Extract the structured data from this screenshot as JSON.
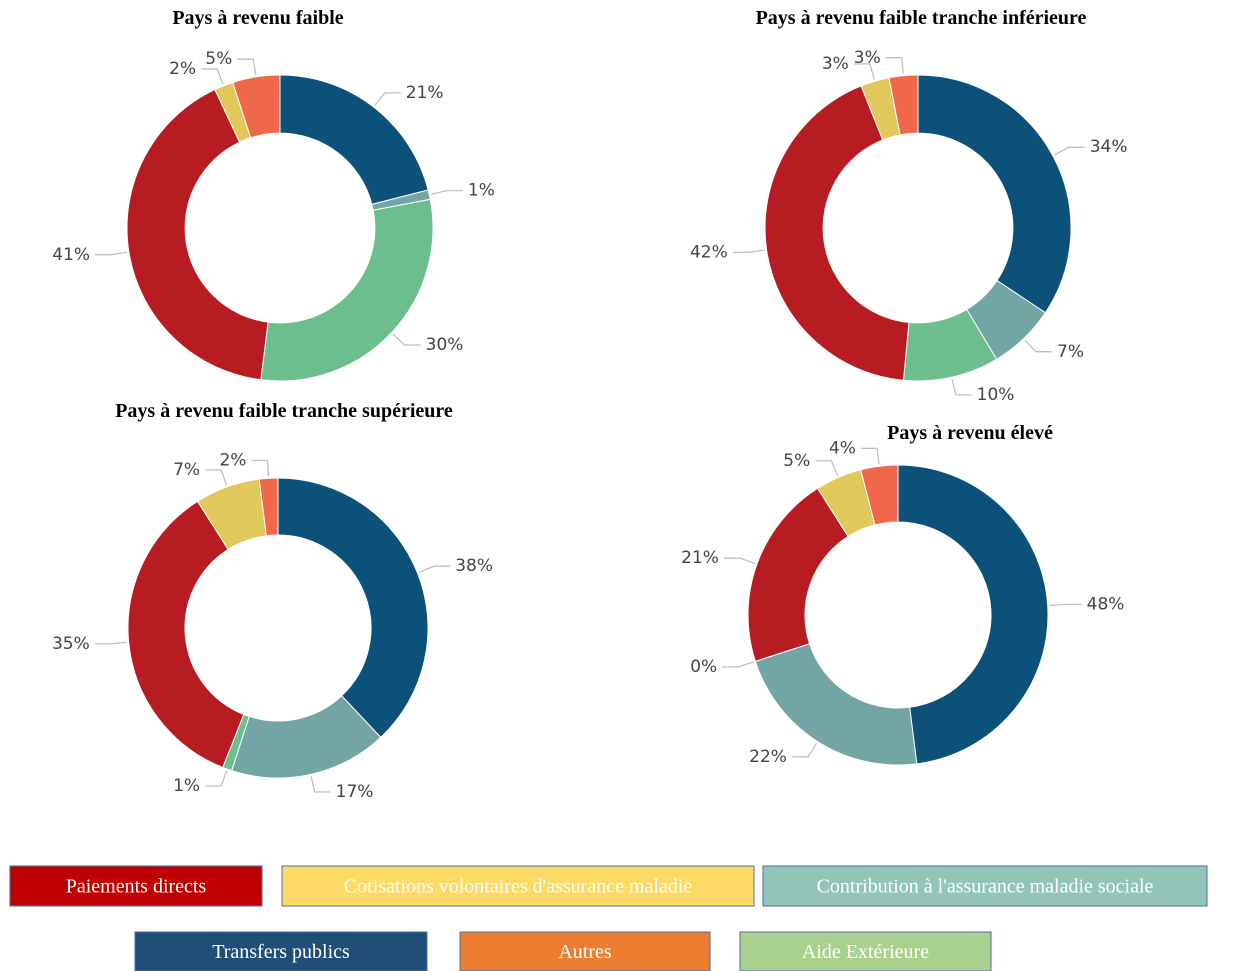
{
  "chart_data": [
    {
      "type": "pie",
      "title": "Pays à revenu faible",
      "values": [
        21,
        1,
        30,
        41,
        2,
        5
      ],
      "value_labels": [
        "21%",
        "1%",
        "30%",
        "41%",
        "2%",
        "5%"
      ],
      "colors": [
        "#0b5179",
        "#74a5a5",
        "#6dbe8f",
        "#b71c22",
        "#e0c95a",
        "#f0684a"
      ]
    },
    {
      "type": "pie",
      "title": "Pays à revenu faible tranche inférieure",
      "values": [
        34,
        7,
        10,
        42,
        3,
        3
      ],
      "value_labels": [
        "34%",
        "7%",
        "10%",
        "42%",
        "3%",
        "3%"
      ],
      "colors": [
        "#0b5179",
        "#74a5a5",
        "#6dbe8f",
        "#b71c22",
        "#e0c95a",
        "#f0684a"
      ]
    },
    {
      "type": "pie",
      "title": "Pays à revenu faible tranche supérieure",
      "values": [
        38,
        17,
        1,
        35,
        7,
        2
      ],
      "value_labels": [
        "38%",
        "17%",
        "1%",
        "35%",
        "7%",
        "2%"
      ],
      "colors": [
        "#0b5179",
        "#74a5a5",
        "#6dbe8f",
        "#b71c22",
        "#e0c95a",
        "#f0684a"
      ]
    },
    {
      "type": "pie",
      "title": "Pays à revenu élevé",
      "values": [
        48,
        22,
        0,
        21,
        5,
        4
      ],
      "value_labels": [
        "48%",
        "22%",
        "0%",
        "21%",
        "5%",
        "4%"
      ],
      "colors": [
        "#0b5179",
        "#74a5a5",
        "#6dbe8f",
        "#b71c22",
        "#e0c95a",
        "#f0684a"
      ]
    }
  ],
  "legend": [
    {
      "label": "Paiements directs",
      "color": "#c00000"
    },
    {
      "label": "Cotisations volontaires d'assurance maladie",
      "color": "#ffd966"
    },
    {
      "label": "Contribution à l'assurance maladie sociale",
      "color": "#93c4b8"
    },
    {
      "label": "Transfers publics",
      "color": "#1f4e79"
    },
    {
      "label": "Autres",
      "color": "#ed7d31"
    },
    {
      "label": "Aide Extérieure",
      "color": "#a9d18e"
    }
  ]
}
